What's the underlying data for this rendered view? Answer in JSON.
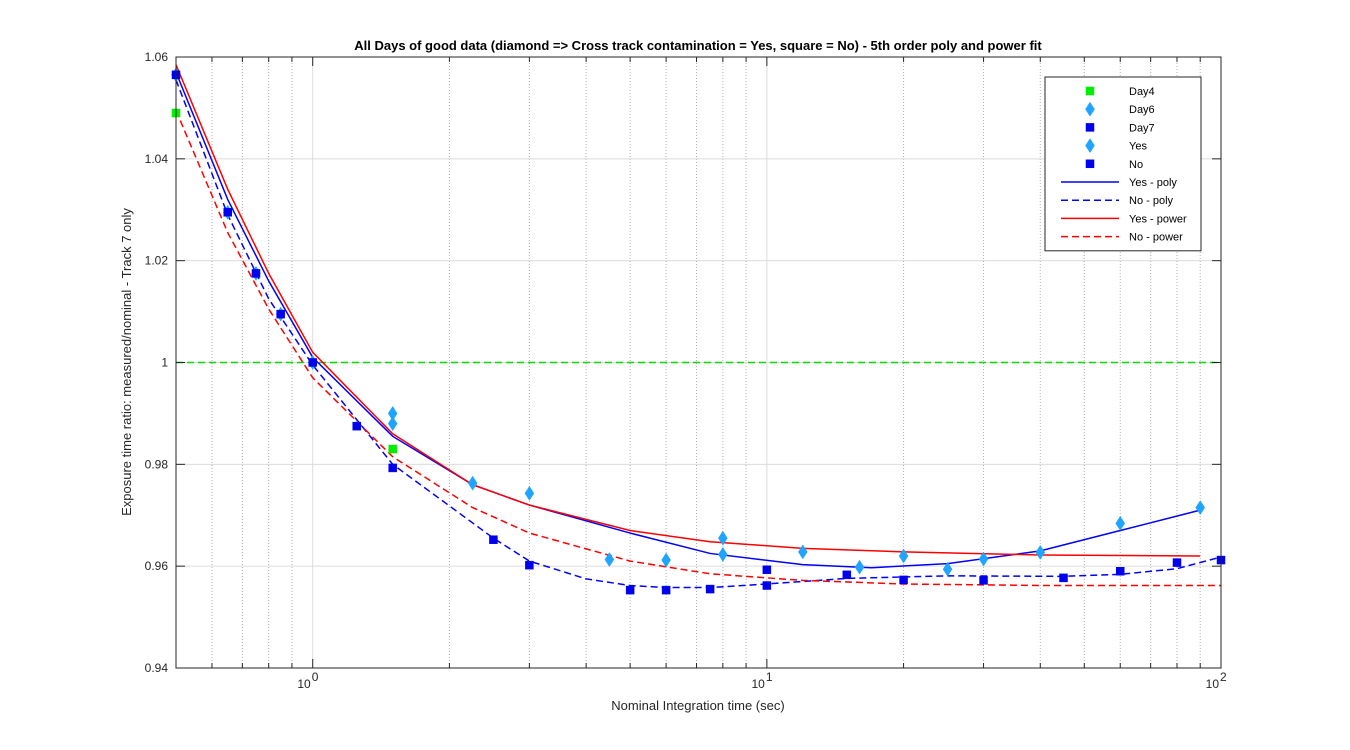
{
  "chart_data": {
    "type": "scatter",
    "title": "All Days of good data  (diamond => Cross track contamination = Yes, square = No) - 5th order poly and power fit",
    "xlabel": "Nominal Integration time (sec)",
    "ylabel": "Exposure time ratio: measured/nominal - Track 7  only",
    "xscale": "log",
    "xlim": [
      0.5,
      100
    ],
    "ylim": [
      0.94,
      1.06
    ],
    "grid": true,
    "legend_position": "top-right",
    "x_ticks": [
      {
        "value": 1,
        "base": "10",
        "exp": "0"
      },
      {
        "value": 10,
        "base": "10",
        "exp": "1"
      },
      {
        "value": 100,
        "base": "10",
        "exp": "2"
      }
    ],
    "y_ticks": [
      {
        "value": 0.94,
        "label": "0.94"
      },
      {
        "value": 0.96,
        "label": "0.96"
      },
      {
        "value": 0.98,
        "label": "0.98"
      },
      {
        "value": 1.0,
        "label": "1"
      },
      {
        "value": 1.02,
        "label": "1.02"
      },
      {
        "value": 1.04,
        "label": "1.04"
      },
      {
        "value": 1.06,
        "label": "1.06"
      }
    ],
    "reference_line": {
      "y": 1.0,
      "color": "#00dd00",
      "style": "dashed"
    },
    "series": [
      {
        "name": "Day4",
        "marker": "square",
        "color": "#00ee00",
        "points": [
          [
            0.5,
            1.049
          ],
          [
            1.5,
            0.983
          ]
        ]
      },
      {
        "name": "Day6",
        "marker": "diamond",
        "color": "#1fa5ff",
        "points": [
          [
            0.5,
            1.0565
          ],
          [
            0.65,
            1.0295
          ],
          [
            0.75,
            1.0175
          ],
          [
            0.85,
            1.0095
          ],
          [
            1.0,
            1.0
          ],
          [
            1.5,
            0.99
          ],
          [
            1.5,
            0.988
          ],
          [
            2.25,
            0.9763
          ],
          [
            3.0,
            0.9743
          ],
          [
            4.5,
            0.9613
          ],
          [
            6.0,
            0.9612
          ],
          [
            8.0,
            0.9655
          ],
          [
            8.0,
            0.9623
          ],
          [
            12.0,
            0.9628
          ],
          [
            16.0,
            0.9598
          ],
          [
            20.0,
            0.962
          ],
          [
            25.0,
            0.9594
          ],
          [
            30.0,
            0.9614
          ],
          [
            40.0,
            0.9627
          ],
          [
            60.0,
            0.9684
          ],
          [
            90.0,
            0.9715
          ]
        ]
      },
      {
        "name": "Day7",
        "marker": "square",
        "color": "#0000ee",
        "points": [
          [
            0.5,
            1.0565
          ],
          [
            0.65,
            1.0295
          ],
          [
            0.75,
            1.0175
          ],
          [
            0.85,
            1.0095
          ],
          [
            1.0,
            1.0
          ],
          [
            1.25,
            0.9875
          ],
          [
            1.5,
            0.9793
          ],
          [
            2.5,
            0.9652
          ],
          [
            3.0,
            0.9602
          ],
          [
            5.0,
            0.9553
          ],
          [
            6.0,
            0.9553
          ],
          [
            7.5,
            0.9555
          ],
          [
            10.0,
            0.9562
          ],
          [
            10.0,
            0.9593
          ],
          [
            15.0,
            0.9583
          ],
          [
            20.0,
            0.9573
          ],
          [
            30.0,
            0.9572
          ],
          [
            45.0,
            0.9577
          ],
          [
            60.0,
            0.959
          ],
          [
            80.0,
            0.9607
          ],
          [
            100.0,
            0.9612
          ]
        ]
      },
      {
        "name": "Yes",
        "marker": "diamond",
        "color": "#1fa5ff",
        "points": []
      },
      {
        "name": "No",
        "marker": "square",
        "color": "#0000ee",
        "points": []
      }
    ],
    "fits": [
      {
        "name": "Yes - poly",
        "color": "#0000ff",
        "style": "solid",
        "points": [
          [
            0.5,
            1.057
          ],
          [
            0.65,
            1.032
          ],
          [
            0.8,
            1.016
          ],
          [
            1.0,
            1.001
          ],
          [
            1.5,
            0.9855
          ],
          [
            2.25,
            0.976
          ],
          [
            3.0,
            0.972
          ],
          [
            5.0,
            0.9665
          ],
          [
            7.5,
            0.9625
          ],
          [
            12.0,
            0.9603
          ],
          [
            17.0,
            0.9597
          ],
          [
            25.0,
            0.9605
          ],
          [
            40.0,
            0.963
          ],
          [
            60.0,
            0.967
          ],
          [
            90.0,
            0.971
          ]
        ]
      },
      {
        "name": "No - poly",
        "color": "#0000ff",
        "style": "dashed",
        "points": [
          [
            0.5,
            1.0555
          ],
          [
            0.65,
            1.029
          ],
          [
            0.8,
            1.0125
          ],
          [
            1.0,
            0.9995
          ],
          [
            1.5,
            0.98
          ],
          [
            2.5,
            0.9655
          ],
          [
            3.0,
            0.961
          ],
          [
            4.0,
            0.9575
          ],
          [
            5.0,
            0.9562
          ],
          [
            6.0,
            0.9558
          ],
          [
            7.5,
            0.9558
          ],
          [
            10.0,
            0.9565
          ],
          [
            15.0,
            0.9576
          ],
          [
            25.0,
            0.9581
          ],
          [
            45.0,
            0.958
          ],
          [
            60.0,
            0.9584
          ],
          [
            80.0,
            0.9595
          ],
          [
            100.0,
            0.9618
          ]
        ]
      },
      {
        "name": "Yes - power",
        "color": "#ff0000",
        "style": "solid",
        "points": [
          [
            0.5,
            1.0585
          ],
          [
            0.65,
            1.034
          ],
          [
            0.8,
            1.0175
          ],
          [
            1.0,
            1.002
          ],
          [
            1.5,
            0.986
          ],
          [
            2.25,
            0.976
          ],
          [
            3.0,
            0.972
          ],
          [
            5.0,
            0.967
          ],
          [
            7.5,
            0.9648
          ],
          [
            12.0,
            0.9635
          ],
          [
            20.0,
            0.9628
          ],
          [
            40.0,
            0.9622
          ],
          [
            90.0,
            0.962
          ]
        ]
      },
      {
        "name": "No - power",
        "color": "#ff0000",
        "style": "dashed",
        "points": [
          [
            0.5,
            1.0495
          ],
          [
            0.65,
            1.0255
          ],
          [
            0.8,
            1.0105
          ],
          [
            1.0,
            0.997
          ],
          [
            1.5,
            0.9815
          ],
          [
            2.25,
            0.9715
          ],
          [
            3.0,
            0.9665
          ],
          [
            5.0,
            0.961
          ],
          [
            7.5,
            0.9585
          ],
          [
            12.0,
            0.9572
          ],
          [
            20.0,
            0.9565
          ],
          [
            40.0,
            0.9562
          ],
          [
            100.0,
            0.9562
          ]
        ]
      }
    ]
  }
}
